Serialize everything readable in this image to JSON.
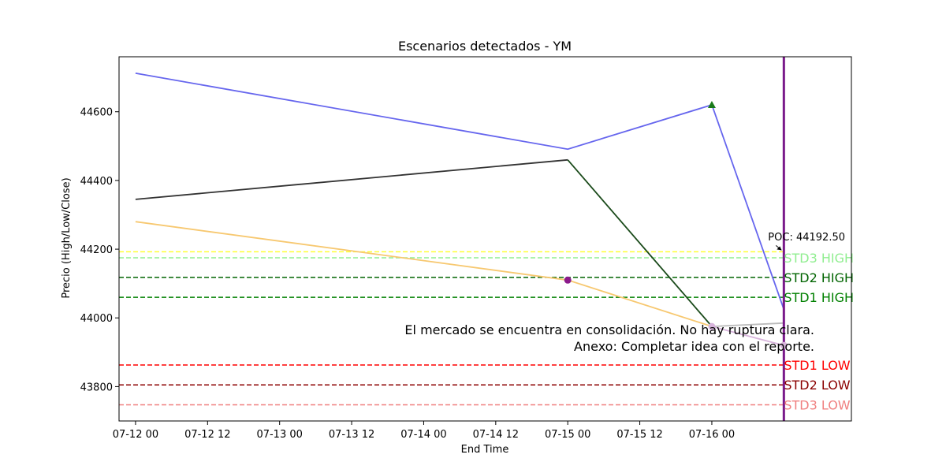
{
  "chart_data": {
    "type": "line",
    "title": "Escenarios detectados - YM",
    "xlabel": "End Time",
    "ylabel": "Precio (High/Low/Close)",
    "x_ticks": [
      "07-12 00",
      "07-12 12",
      "07-13 00",
      "07-13 12",
      "07-14 00",
      "07-14 12",
      "07-15 00",
      "07-15 12",
      "07-16 00"
    ],
    "y_ticks": [
      43800,
      44000,
      44200,
      44400,
      44600
    ],
    "xlim": [
      "07-11 21:15",
      "07-16 23:15"
    ],
    "ylim": [
      43700,
      44760
    ],
    "grid": false,
    "series": [
      {
        "role": "high",
        "color": "#6666ee",
        "points": [
          [
            "07-12 00",
            44712
          ],
          [
            "07-15 00",
            44491
          ],
          [
            "07-16 00",
            44620
          ],
          [
            "07-16 12",
            44025
          ]
        ]
      },
      {
        "role": "close",
        "color": "#333333",
        "points": [
          [
            "07-12 00",
            44345
          ],
          [
            "07-15 00",
            44460
          ]
        ]
      },
      {
        "role": "close-bearish",
        "color": "#1a4a1a",
        "points": [
          [
            "07-15 00",
            44460
          ],
          [
            "07-16 00",
            43975
          ]
        ]
      },
      {
        "role": "close-recent",
        "color": "#bbbbbb",
        "points": [
          [
            "07-16 00",
            43975
          ],
          [
            "07-16 12",
            43985
          ]
        ]
      },
      {
        "role": "low",
        "color": "#f7c870",
        "points": [
          [
            "07-12 00",
            44280
          ],
          [
            "07-15 00",
            44110
          ],
          [
            "07-16 00",
            43975
          ]
        ]
      },
      {
        "role": "low-recent",
        "color": "#d8b4dc",
        "points": [
          [
            "07-16 00",
            43975
          ],
          [
            "07-16 12",
            43920
          ]
        ]
      }
    ],
    "markers": [
      {
        "x": "07-15 00",
        "y": 44110,
        "shape": "circle",
        "color": "#8b1a8b"
      },
      {
        "x": "07-16 00",
        "y": 44620,
        "shape": "triangle",
        "color": "#1a7a1a"
      },
      {
        "x": "07-16 00",
        "y": 43975,
        "shape": "circle",
        "color": "#d8b4dc"
      },
      {
        "x": "07-16 12",
        "y": 43920,
        "shape": "circle",
        "color": "#d8b4dc"
      }
    ],
    "vertical_line": {
      "x": "07-16 12",
      "color": "#7a1a8a"
    },
    "poc": {
      "label": "POC: 44192.50",
      "value": 44192.5,
      "color": "#ffff33"
    },
    "levels": [
      {
        "label": "STD3 HIGH",
        "value": 44175,
        "color": "#90ee90",
        "label_color": "#90ee90"
      },
      {
        "label": "STD2 HIGH",
        "value": 44118,
        "color": "#006400",
        "label_color": "#006400"
      },
      {
        "label": "STD1 HIGH",
        "value": 44060,
        "color": "#008000",
        "label_color": "#008000"
      },
      {
        "label": "STD1 LOW",
        "value": 43863,
        "color": "#ff0000",
        "label_color": "#ff0000"
      },
      {
        "label": "STD2 LOW",
        "value": 43805,
        "color": "#8b0000",
        "label_color": "#8b0000"
      },
      {
        "label": "STD3 LOW",
        "value": 43747,
        "color": "#f08080",
        "label_color": "#f08080"
      }
    ],
    "annotations": [
      "El mercado se encuentra en consolidación. No hay ruptura clara.",
      "Anexo: Completar idea con el reporte."
    ]
  }
}
